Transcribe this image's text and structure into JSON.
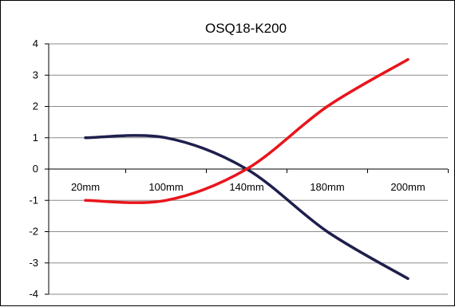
{
  "chart_data": {
    "type": "line",
    "title": "OSQ18-K200",
    "xlabel": "",
    "ylabel": "",
    "categories": [
      "20mm",
      "100mm",
      "140mm",
      "180mm",
      "200mm"
    ],
    "ylim": [
      -4,
      4
    ],
    "yticks": [
      4,
      3,
      2,
      1,
      0,
      -1,
      -2,
      -3,
      -4
    ],
    "grid": true,
    "legend": "none",
    "series": [
      {
        "color": "#1f1f4d",
        "values": [
          1,
          1,
          0,
          -2,
          -3.5
        ]
      },
      {
        "color": "#e8151b",
        "values": [
          -1,
          -1,
          0,
          2,
          3.5
        ]
      }
    ]
  }
}
